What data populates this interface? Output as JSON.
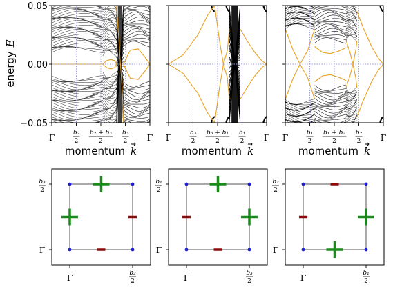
{
  "figure": {
    "ylabel": "energy",
    "ylabel_symbol": "E",
    "xlabel": "momentum",
    "xlabel_symbol": "k",
    "ytick_labels": [
      "0.05",
      "0.00",
      "−0.05"
    ]
  },
  "colors": {
    "bulk_bands": "#000000",
    "edge_states": "#e8a020",
    "reference_lines": "#9a9ae0",
    "node_plus": "#1a8a1a",
    "node_minus": "#8b0a0a",
    "corner_points": "#1f1fd0",
    "frame": "#000000"
  },
  "chart_data": [
    {
      "type": "line",
      "panel": "band-structure-1",
      "ylim": [
        -0.05,
        0.05
      ],
      "yticks": [
        0.05,
        0.0,
        -0.05
      ],
      "x_ticks": [
        {
          "num": "",
          "den": "",
          "sym": "Γ"
        },
        {
          "num": "b₂",
          "den": "2",
          "sym": ""
        },
        {
          "num": "b₂ + b₃",
          "den": "2",
          "sym": ""
        },
        {
          "num": "b₃",
          "den": "2",
          "sym": ""
        },
        {
          "num": "",
          "den": "",
          "sym": "Γ"
        }
      ],
      "segments": [
        {
          "from": 0.0,
          "to": 0.52,
          "bulk": "dense-gapped",
          "gap": 0.01
        },
        {
          "from": 0.52,
          "to": 0.66,
          "bulk": "dense-gapped",
          "gap": 0.007
        },
        {
          "from": 0.66,
          "to": 0.73,
          "bulk": "crossing"
        },
        {
          "from": 0.73,
          "to": 1.0,
          "bulk": "sparse-gapped",
          "gap": 0.015
        }
      ],
      "edge_curves": [
        {
          "x": [
            0.0,
            0.1,
            0.25,
            0.42,
            0.52
          ],
          "y": [
            0.0,
            0.0,
            0.0,
            0.0,
            0.0
          ]
        },
        {
          "x": [
            0.52,
            0.56,
            0.6,
            0.64,
            0.66
          ],
          "y": [
            0.0,
            0.003,
            0.004,
            0.003,
            0.0
          ]
        },
        {
          "x": [
            0.52,
            0.56,
            0.6,
            0.64,
            0.66
          ],
          "y": [
            0.0,
            -0.003,
            -0.004,
            -0.003,
            0.0
          ]
        },
        {
          "x": [
            0.66,
            0.68,
            0.7,
            0.72,
            0.73
          ],
          "y": [
            0.05,
            0.025,
            0.0,
            -0.025,
            -0.05
          ]
        },
        {
          "x": [
            0.73,
            0.8,
            0.88,
            0.95,
            1.0
          ],
          "y": [
            0.0,
            0.012,
            0.013,
            0.006,
            0.0
          ]
        },
        {
          "x": [
            0.73,
            0.8,
            0.88,
            0.95,
            1.0
          ],
          "y": [
            0.0,
            -0.012,
            -0.013,
            -0.006,
            0.0
          ]
        }
      ]
    },
    {
      "type": "line",
      "panel": "band-structure-2",
      "ylim": [
        -0.05,
        0.05
      ],
      "yticks": [
        0.05,
        0.0,
        -0.05
      ],
      "x_ticks": [
        {
          "num": "",
          "den": "",
          "sym": "Γ"
        },
        {
          "num": "b₃",
          "den": "2",
          "sym": ""
        },
        {
          "num": "b₃ + b₁",
          "den": "2",
          "sym": ""
        },
        {
          "num": "b₁",
          "den": "2",
          "sym": ""
        },
        {
          "num": "",
          "den": "",
          "sym": "Γ"
        }
      ],
      "segments": [
        {
          "from": 0.0,
          "to": 0.47,
          "bulk": "edge-only",
          "gap": 0.045
        },
        {
          "from": 0.47,
          "to": 0.62,
          "bulk": "edge-only",
          "gap": 0.045
        },
        {
          "from": 0.62,
          "to": 0.73,
          "bulk": "dense-crossing"
        },
        {
          "from": 0.73,
          "to": 1.0,
          "bulk": "edge-only",
          "gap": 0.045
        }
      ],
      "edge_curves": [
        {
          "x": [
            0.0,
            0.15,
            0.3,
            0.4,
            0.47
          ],
          "y": [
            0.0,
            0.008,
            0.025,
            0.042,
            0.05
          ]
        },
        {
          "x": [
            0.0,
            0.15,
            0.3,
            0.4,
            0.47
          ],
          "y": [
            0.0,
            -0.008,
            -0.025,
            -0.042,
            -0.05
          ]
        },
        {
          "x": [
            0.47,
            0.52,
            0.56,
            0.6,
            0.62
          ],
          "y": [
            0.05,
            0.02,
            0.0,
            0.012,
            0.03
          ]
        },
        {
          "x": [
            0.47,
            0.52,
            0.56,
            0.6,
            0.62
          ],
          "y": [
            -0.05,
            -0.02,
            0.0,
            -0.012,
            -0.03
          ]
        },
        {
          "x": [
            0.73,
            0.8,
            0.88,
            0.95,
            1.0
          ],
          "y": [
            0.03,
            0.02,
            0.01,
            0.003,
            0.0
          ]
        },
        {
          "x": [
            0.73,
            0.8,
            0.88,
            0.95,
            1.0
          ],
          "y": [
            -0.03,
            -0.02,
            -0.01,
            -0.003,
            0.0
          ]
        }
      ]
    },
    {
      "type": "line",
      "panel": "band-structure-3",
      "ylim": [
        -0.05,
        0.05
      ],
      "yticks": [
        0.05,
        0.0,
        -0.05
      ],
      "x_ticks": [
        {
          "num": "",
          "den": "",
          "sym": "Γ"
        },
        {
          "num": "b₁",
          "den": "2",
          "sym": ""
        },
        {
          "num": "b₁ + b₂",
          "den": "2",
          "sym": ""
        },
        {
          "num": "b₂",
          "den": "2",
          "sym": ""
        },
        {
          "num": "",
          "den": "",
          "sym": "Γ"
        }
      ],
      "segments": [
        {
          "from": 0.0,
          "to": 0.3,
          "bulk": "dense-gapped",
          "gap": 0.03
        },
        {
          "from": 0.3,
          "to": 0.62,
          "bulk": "sparse-gapped",
          "gap": 0.018
        },
        {
          "from": 0.62,
          "to": 0.73,
          "bulk": "dense-gapped",
          "gap": 0.02
        },
        {
          "from": 0.73,
          "to": 1.0,
          "bulk": "edge-only",
          "gap": 0.045
        }
      ],
      "edge_curves": [
        {
          "x": [
            0.0,
            0.08,
            0.15,
            0.23,
            0.3
          ],
          "y": [
            0.03,
            0.012,
            0.0,
            -0.012,
            -0.03
          ]
        },
        {
          "x": [
            0.0,
            0.08,
            0.15,
            0.23,
            0.3
          ],
          "y": [
            -0.03,
            -0.012,
            0.0,
            0.012,
            0.03
          ]
        },
        {
          "x": [
            0.3,
            0.38,
            0.46,
            0.54,
            0.62
          ],
          "y": [
            0.015,
            0.01,
            0.009,
            0.011,
            0.014
          ]
        },
        {
          "x": [
            0.3,
            0.38,
            0.46,
            0.54,
            0.62
          ],
          "y": [
            -0.015,
            -0.01,
            -0.009,
            -0.011,
            -0.014
          ]
        },
        {
          "x": [
            0.62,
            0.66,
            0.69,
            0.72,
            0.73
          ],
          "y": [
            0.02,
            0.01,
            0.0,
            -0.012,
            -0.02
          ]
        },
        {
          "x": [
            0.62,
            0.66,
            0.69,
            0.72,
            0.73
          ],
          "y": [
            -0.02,
            -0.01,
            0.0,
            0.012,
            0.02
          ]
        },
        {
          "x": [
            0.73,
            0.8,
            0.88,
            0.95,
            1.0
          ],
          "y": [
            0.045,
            0.03,
            0.015,
            0.005,
            0.0
          ]
        },
        {
          "x": [
            0.73,
            0.8,
            0.88,
            0.95,
            1.0
          ],
          "y": [
            -0.045,
            -0.03,
            -0.015,
            -0.005,
            0.0
          ]
        }
      ]
    },
    {
      "type": "scatter",
      "panel": "brillouin-zone-1",
      "x_tick_labels": [
        {
          "sym": "Γ",
          "num": "",
          "den": ""
        },
        {
          "sym": "",
          "num": "b₂",
          "den": "2"
        }
      ],
      "y_tick_labels": [
        {
          "sym": "Γ",
          "num": "",
          "den": ""
        },
        {
          "sym": "",
          "num": "b₃",
          "den": "2"
        }
      ],
      "corners": [
        [
          0,
          0
        ],
        [
          1,
          0
        ],
        [
          1,
          1
        ],
        [
          0,
          1
        ]
      ],
      "nodes": [
        {
          "x": 0.5,
          "y": 1.0,
          "sign": "+"
        },
        {
          "x": 0.0,
          "y": 0.5,
          "sign": "+"
        },
        {
          "x": 1.0,
          "y": 0.5,
          "sign": "−"
        },
        {
          "x": 0.5,
          "y": 0.0,
          "sign": "−"
        }
      ]
    },
    {
      "type": "scatter",
      "panel": "brillouin-zone-2",
      "x_tick_labels": [
        {
          "sym": "Γ",
          "num": "",
          "den": ""
        },
        {
          "sym": "",
          "num": "b₃",
          "den": "2"
        }
      ],
      "y_tick_labels": [
        {
          "sym": "Γ",
          "num": "",
          "den": ""
        },
        {
          "sym": "",
          "num": "b₁",
          "den": "2"
        }
      ],
      "corners": [
        [
          0,
          0
        ],
        [
          1,
          0
        ],
        [
          1,
          1
        ],
        [
          0,
          1
        ]
      ],
      "nodes": [
        {
          "x": 0.5,
          "y": 1.0,
          "sign": "+"
        },
        {
          "x": 1.0,
          "y": 0.5,
          "sign": "+"
        },
        {
          "x": 0.0,
          "y": 0.5,
          "sign": "−"
        },
        {
          "x": 0.5,
          "y": 0.0,
          "sign": "−"
        }
      ]
    },
    {
      "type": "scatter",
      "panel": "brillouin-zone-3",
      "x_tick_labels": [
        {
          "sym": "Γ",
          "num": "",
          "den": ""
        },
        {
          "sym": "",
          "num": "b₁",
          "den": "2"
        }
      ],
      "y_tick_labels": [
        {
          "sym": "Γ",
          "num": "",
          "den": ""
        },
        {
          "sym": "",
          "num": "b₂",
          "den": "2"
        }
      ],
      "corners": [
        [
          0,
          0
        ],
        [
          1,
          0
        ],
        [
          1,
          1
        ],
        [
          0,
          1
        ]
      ],
      "nodes": [
        {
          "x": 1.0,
          "y": 0.5,
          "sign": "+"
        },
        {
          "x": 0.5,
          "y": 0.0,
          "sign": "+"
        },
        {
          "x": 0.5,
          "y": 1.0,
          "sign": "−"
        },
        {
          "x": 0.0,
          "y": 0.5,
          "sign": "−"
        }
      ]
    }
  ]
}
